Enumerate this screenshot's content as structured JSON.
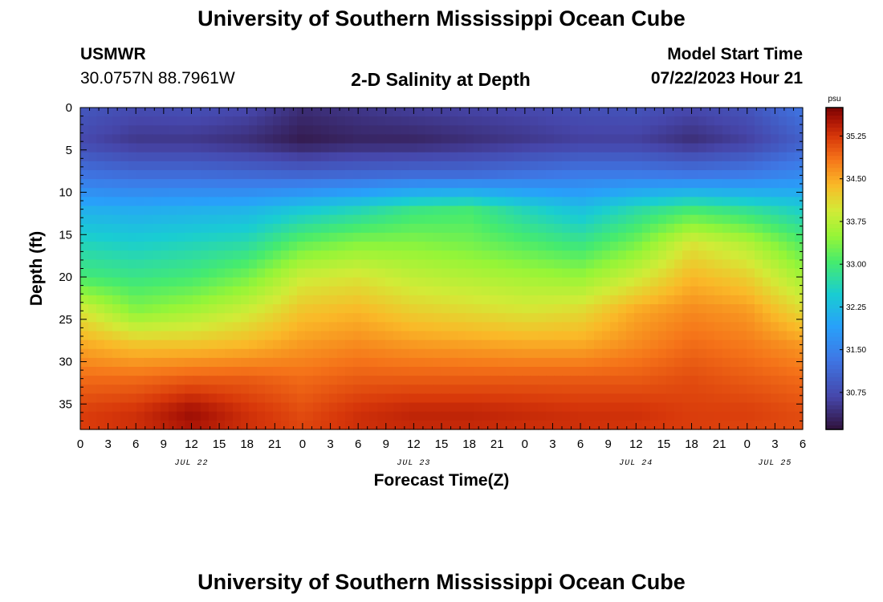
{
  "header": {
    "title_top": "University of Southern Mississippi Ocean Cube",
    "title_bottom": "University of Southern Mississippi Ocean Cube",
    "station_id": "USMWR",
    "station_coords": "30.0757N  88.7961W",
    "plot_title": "2-D Salinity at Depth",
    "model_label": "Model Start Time",
    "model_time": "07/22/2023 Hour 21"
  },
  "chart_data": {
    "type": "heatmap",
    "title": "2-D Salinity at Depth",
    "xlabel": "Forecast Time(Z)",
    "ylabel": "Depth (ft)",
    "x_tick_labels": [
      "0",
      "3",
      "6",
      "9",
      "12",
      "15",
      "18",
      "21",
      "0",
      "3",
      "6",
      "9",
      "12",
      "15",
      "18",
      "21",
      "0",
      "3",
      "6",
      "9",
      "12",
      "15",
      "18",
      "21",
      "0",
      "3",
      "6"
    ],
    "x_hours_range": [
      0,
      78
    ],
    "day_labels": [
      {
        "label": "JUL 22",
        "hour": 12
      },
      {
        "label": "JUL 23",
        "hour": 36
      },
      {
        "label": "JUL 24",
        "hour": 60
      },
      {
        "label": "JUL 25",
        "hour": 75
      }
    ],
    "y_ticks": [
      0,
      5,
      10,
      15,
      20,
      25,
      30,
      35
    ],
    "y_tick_labels": [
      "0",
      "5",
      "10",
      "15",
      "20",
      "25",
      "30",
      "35"
    ],
    "ylim": [
      0,
      38
    ],
    "colorbar": {
      "unit": "psu",
      "range": [
        30.1,
        35.75
      ],
      "ticks": [
        35.25,
        34.5,
        33.75,
        33.0,
        32.25,
        31.5,
        30.75
      ],
      "tick_labels": [
        "35.25",
        "34.50",
        "33.75",
        "33.00",
        "32.25",
        "31.50",
        "30.75"
      ]
    },
    "field_hours": [
      0,
      6,
      12,
      18,
      24,
      30,
      36,
      42,
      48,
      54,
      60,
      66,
      72,
      78
    ],
    "field_depths": [
      0,
      4,
      8,
      12,
      16,
      20,
      24,
      28,
      32,
      36,
      38
    ],
    "salinity": [
      [
        30.9,
        30.75,
        30.8,
        30.7,
        30.4,
        30.5,
        30.6,
        30.65,
        30.7,
        30.8,
        30.85,
        30.7,
        30.85,
        31.3
      ],
      [
        30.7,
        30.5,
        30.5,
        30.4,
        30.2,
        30.3,
        30.3,
        30.4,
        30.5,
        30.6,
        30.6,
        30.4,
        30.6,
        31.0
      ],
      [
        31.3,
        31.2,
        31.2,
        31.15,
        31.1,
        31.15,
        31.2,
        31.2,
        31.3,
        31.4,
        31.4,
        31.35,
        31.4,
        31.6
      ],
      [
        32.1,
        32.05,
        32.1,
        32.15,
        32.4,
        32.6,
        32.9,
        33.0,
        32.6,
        32.3,
        32.7,
        33.0,
        32.8,
        32.5
      ],
      [
        32.6,
        32.5,
        32.6,
        32.7,
        33.2,
        33.4,
        33.4,
        33.3,
        33.1,
        32.9,
        33.3,
        34.0,
        33.7,
        33.1
      ],
      [
        33.0,
        32.9,
        33.0,
        33.3,
        33.9,
        34.0,
        33.8,
        33.7,
        33.6,
        33.5,
        33.9,
        34.4,
        34.2,
        33.6
      ],
      [
        34.0,
        33.4,
        33.6,
        33.9,
        34.3,
        34.4,
        34.2,
        34.1,
        34.0,
        34.1,
        34.5,
        34.7,
        34.6,
        34.1
      ],
      [
        34.5,
        34.3,
        34.3,
        34.4,
        34.6,
        34.7,
        34.6,
        34.55,
        34.5,
        34.5,
        34.7,
        34.9,
        34.8,
        34.6
      ],
      [
        34.9,
        34.9,
        35.0,
        35.0,
        34.9,
        35.0,
        35.0,
        35.0,
        35.0,
        35.0,
        35.0,
        35.1,
        35.0,
        34.9
      ],
      [
        35.2,
        35.3,
        35.6,
        35.3,
        35.1,
        35.3,
        35.4,
        35.4,
        35.35,
        35.3,
        35.3,
        35.2,
        35.2,
        35.1
      ],
      [
        35.2,
        35.3,
        35.5,
        35.3,
        35.15,
        35.3,
        35.35,
        35.35,
        35.3,
        35.3,
        35.25,
        35.2,
        35.15,
        35.1
      ]
    ]
  }
}
